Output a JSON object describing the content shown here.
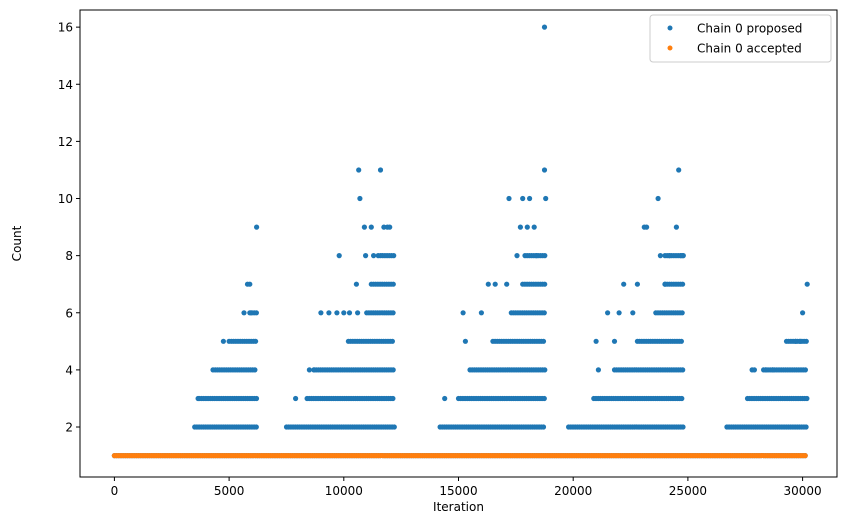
{
  "chart_data": {
    "type": "scatter",
    "title": "",
    "xlabel": "Iteration",
    "ylabel": "Count",
    "xlim": [
      -1500,
      31500
    ],
    "ylim": [
      0.25,
      16.6
    ],
    "xticks": [
      0,
      5000,
      10000,
      15000,
      20000,
      25000,
      30000
    ],
    "yticks": [
      2,
      4,
      6,
      8,
      10,
      12,
      14,
      16
    ],
    "grid": false,
    "legend": {
      "placement": "top-right"
    },
    "colors": {
      "proposed": "#1f77b4",
      "accepted": "#ff7f0e"
    },
    "series": [
      {
        "name": "Chain 0 proposed",
        "color": "#1f77b4",
        "bands": [
          {
            "y": 1,
            "from": 0,
            "to": 30200
          },
          {
            "y": 2,
            "from": 3500,
            "to": 6200
          },
          {
            "y": 2,
            "from": 7500,
            "to": 12200
          },
          {
            "y": 2,
            "from": 14200,
            "to": 18800
          },
          {
            "y": 2,
            "from": 19800,
            "to": 24800
          },
          {
            "y": 2,
            "from": 26700,
            "to": 30200
          },
          {
            "y": 3,
            "from": 3700,
            "to": 6200
          },
          {
            "y": 3,
            "from": 8400,
            "to": 12200
          },
          {
            "y": 3,
            "from": 15000,
            "to": 18800
          },
          {
            "y": 3,
            "from": 20900,
            "to": 24800
          },
          {
            "y": 3,
            "from": 27600,
            "to": 30200
          },
          {
            "y": 4,
            "from": 4400,
            "to": 6200
          },
          {
            "y": 4,
            "from": 8700,
            "to": 12200
          },
          {
            "y": 4,
            "from": 15500,
            "to": 18800
          },
          {
            "y": 4,
            "from": 21800,
            "to": 24800
          },
          {
            "y": 4,
            "from": 28300,
            "to": 30200
          },
          {
            "y": 5,
            "from": 5100,
            "to": 6200
          },
          {
            "y": 5,
            "from": 10200,
            "to": 12200
          },
          {
            "y": 5,
            "from": 16500,
            "to": 18800
          },
          {
            "y": 5,
            "from": 22800,
            "to": 24800
          },
          {
            "y": 5,
            "from": 29300,
            "to": 30200
          },
          {
            "y": 6,
            "from": 5900,
            "to": 6200
          },
          {
            "y": 6,
            "from": 11000,
            "to": 12200
          },
          {
            "y": 6,
            "from": 17300,
            "to": 18800
          },
          {
            "y": 6,
            "from": 23600,
            "to": 24800
          },
          {
            "y": 7,
            "from": 11200,
            "to": 12200
          },
          {
            "y": 7,
            "from": 17800,
            "to": 18800
          },
          {
            "y": 7,
            "from": 24000,
            "to": 24800
          },
          {
            "y": 8,
            "from": 11600,
            "to": 12200
          },
          {
            "y": 8,
            "from": 17900,
            "to": 18800
          },
          {
            "y": 8,
            "from": 24000,
            "to": 24800
          }
        ],
        "points": [
          [
            3650,
            3
          ],
          [
            4300,
            4
          ],
          [
            4750,
            5
          ],
          [
            5000,
            5
          ],
          [
            5650,
            6
          ],
          [
            5800,
            7
          ],
          [
            5900,
            7
          ],
          [
            5950,
            6
          ],
          [
            6200,
            9
          ],
          [
            7900,
            3
          ],
          [
            8500,
            4
          ],
          [
            8700,
            4
          ],
          [
            9000,
            6
          ],
          [
            9350,
            6
          ],
          [
            9700,
            6
          ],
          [
            9800,
            8
          ],
          [
            10000,
            6
          ],
          [
            10250,
            6
          ],
          [
            10550,
            7
          ],
          [
            10600,
            6
          ],
          [
            10650,
            11
          ],
          [
            10700,
            10
          ],
          [
            10900,
            9
          ],
          [
            10950,
            8
          ],
          [
            11200,
            9
          ],
          [
            11300,
            8
          ],
          [
            11500,
            8
          ],
          [
            11600,
            11
          ],
          [
            11750,
            9
          ],
          [
            11900,
            9
          ],
          [
            12000,
            9
          ],
          [
            14400,
            3
          ],
          [
            15200,
            6
          ],
          [
            15300,
            5
          ],
          [
            16000,
            6
          ],
          [
            16300,
            7
          ],
          [
            16600,
            7
          ],
          [
            17100,
            7
          ],
          [
            17200,
            10
          ],
          [
            17550,
            8
          ],
          [
            17700,
            9
          ],
          [
            17800,
            10
          ],
          [
            18000,
            9
          ],
          [
            18100,
            10
          ],
          [
            18300,
            9
          ],
          [
            18750,
            16
          ],
          [
            18750,
            11
          ],
          [
            18800,
            10
          ],
          [
            18400,
            8
          ],
          [
            21000,
            5
          ],
          [
            21100,
            4
          ],
          [
            21500,
            6
          ],
          [
            21800,
            5
          ],
          [
            22000,
            6
          ],
          [
            22200,
            7
          ],
          [
            22600,
            6
          ],
          [
            22800,
            7
          ],
          [
            23100,
            9
          ],
          [
            23200,
            9
          ],
          [
            23700,
            10
          ],
          [
            23800,
            8
          ],
          [
            24000,
            7
          ],
          [
            24200,
            8
          ],
          [
            24500,
            9
          ],
          [
            24600,
            11
          ],
          [
            24700,
            8
          ],
          [
            24800,
            8
          ],
          [
            27800,
            4
          ],
          [
            27900,
            4
          ],
          [
            28400,
            4
          ],
          [
            28700,
            4
          ],
          [
            29700,
            5
          ],
          [
            29900,
            5
          ],
          [
            30000,
            6
          ],
          [
            30200,
            7
          ]
        ]
      },
      {
        "name": "Chain 0 accepted",
        "color": "#ff7f0e",
        "bands": [
          {
            "y": 1,
            "from": 0,
            "to": 30200
          }
        ],
        "points": []
      }
    ]
  }
}
